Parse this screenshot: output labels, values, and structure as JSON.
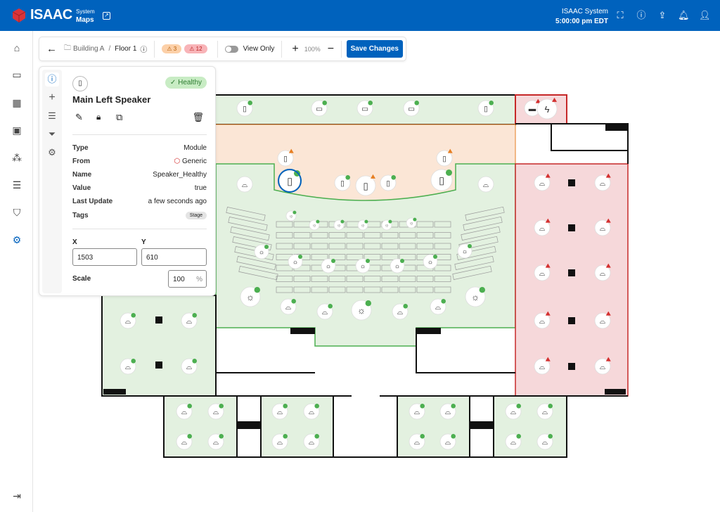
{
  "header": {
    "brand": "ISAAC",
    "app_section": "System",
    "app_name": "Maps",
    "system_name": "ISAAC System",
    "time": "5:00:00 pm EDT",
    "icons": [
      "fullscreen-icon",
      "info-icon",
      "upload-icon",
      "bell-icon",
      "user-icon"
    ]
  },
  "sidebar": {
    "items": [
      "home-icon",
      "window-icon",
      "calendar-icon",
      "images-icon",
      "network-icon",
      "list-icon",
      "shield-icon",
      "settings-icon"
    ],
    "collapse": "collapse-icon"
  },
  "toolbar": {
    "breadcrumb": [
      "Building A",
      "Floor 1"
    ],
    "warning_count": "3",
    "alarm_count": "12",
    "view_only_label": "View Only",
    "view_only": false,
    "zoom": "100%",
    "save_label": "Save Changes"
  },
  "panel": {
    "title": "Main Left Speaker",
    "status": "Healthy",
    "details": [
      {
        "k": "Type",
        "v": "Module"
      },
      {
        "k": "From",
        "v": "Generic"
      },
      {
        "k": "Name",
        "v": "Speaker_Healthy"
      },
      {
        "k": "Value",
        "v": "true"
      },
      {
        "k": "Last Update",
        "v": "a few seconds ago"
      }
    ],
    "tags_label": "Tags",
    "tag": "Stage",
    "x_label": "X",
    "x": "1503",
    "y_label": "Y",
    "y": "610",
    "scale_label": "Scale",
    "scale": "100",
    "scale_unit": "%"
  },
  "colors": {
    "primary": "#0062bd",
    "healthy": "#4caf50",
    "warning": "#e67e22",
    "alarm": "#d32f2f",
    "zone_green": "#e3f1e0",
    "zone_orange": "#fbe6d6",
    "zone_red": "#f6d8da"
  }
}
